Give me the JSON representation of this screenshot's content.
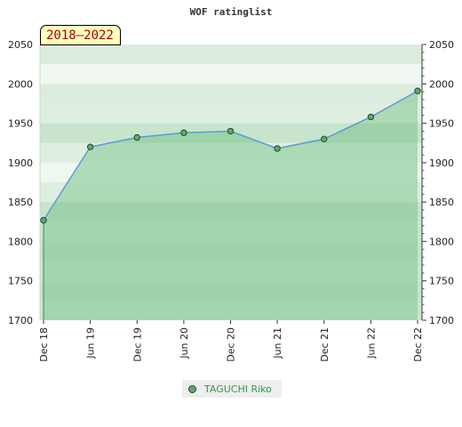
{
  "chart_data": {
    "type": "area",
    "title": "WOF ratinglist",
    "period_label": "2018–2022",
    "x": [
      "Dec 18",
      "Jun 19",
      "Dec 19",
      "Jun 20",
      "Dec 20",
      "Jun 21",
      "Dec 21",
      "Jun 22",
      "Dec 22"
    ],
    "series": [
      {
        "name": "TAGUCHI Riko",
        "values": [
          1827,
          1920,
          1932,
          1938,
          1940,
          1918,
          1930,
          1958,
          1991
        ]
      }
    ],
    "ylim": [
      1700,
      2050
    ],
    "yticks": [
      1700,
      1750,
      1800,
      1850,
      1900,
      1950,
      2000,
      2050
    ],
    "legend_position": "bottom",
    "grid": true
  },
  "colors": {
    "line": "#5b9bd5",
    "fill": "#7cc48c",
    "marker": "#60a870",
    "band_light": "#f0f7f1",
    "band_mid": "#dcede0",
    "band_darker": "#c8e4cd",
    "band_plot": "#9ad2a7"
  }
}
